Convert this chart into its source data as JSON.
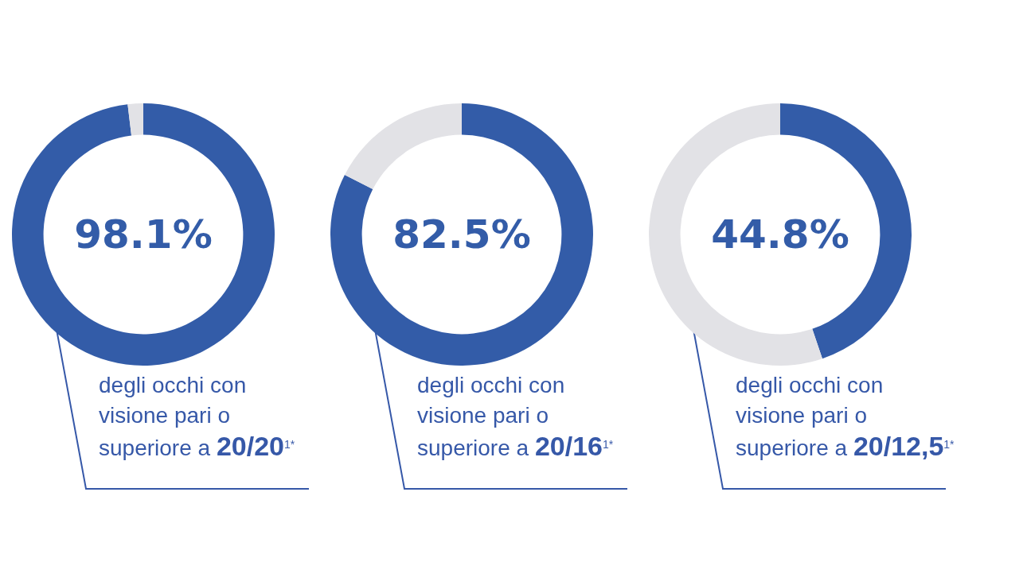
{
  "chart_data": [
    {
      "type": "donut",
      "title": "98.1%",
      "categories": [
        null,
        null
      ],
      "values": [
        98.1,
        1.9
      ],
      "colors": [
        "#335ca8",
        "#e2e2e6"
      ],
      "annotations": [
        "degli occhi con\nvisione pari o\nsuperiore a 20/20$^{1*}$"
      ]
    },
    {
      "type": "donut",
      "title": "82.5%",
      "categories": [
        null,
        null
      ],
      "values": [
        82.5,
        17.5
      ],
      "colors": [
        "#335ca8",
        "#e2e2e6"
      ],
      "annotations": [
        "degli occhi con\nvisione pari o\nsuperiore a 20/16$^{1*}$"
      ]
    },
    {
      "type": "donut",
      "title": "44.8%",
      "categories": [
        null,
        null
      ],
      "values": [
        44.8,
        55.2
      ],
      "colors": [
        "#335ca8",
        "#e2e2e6"
      ],
      "annotations": [
        "degli occhi con\nvisione pari o\nsuperiore a 20/12,5$^{1*}$"
      ]
    }
  ]
}
